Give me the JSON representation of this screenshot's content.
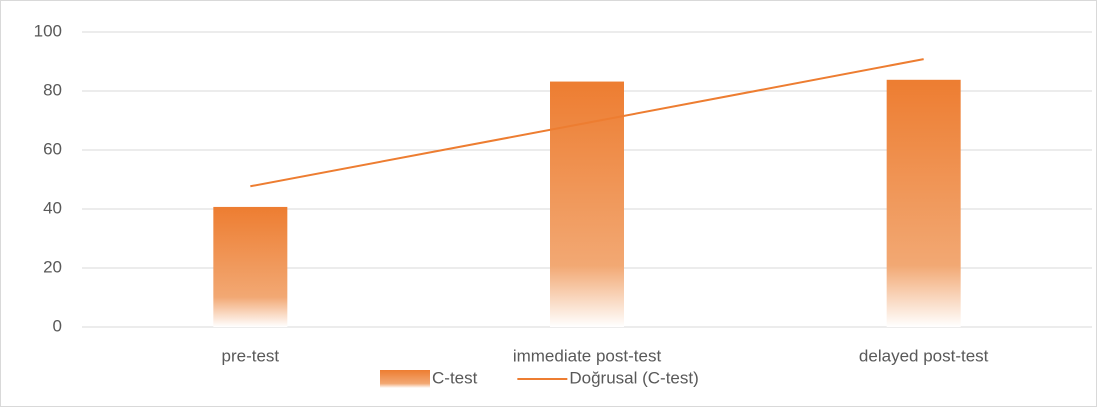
{
  "chart_data": {
    "type": "bar",
    "categories": [
      "pre-test",
      "immediate post-test",
      "delayed post-test"
    ],
    "series": [
      {
        "name": "C-test",
        "type": "bar",
        "color": "#ed7d31",
        "values": [
          40.7,
          83.2,
          83.8
        ]
      },
      {
        "name": "Doğrusal (C-test)",
        "type": "line",
        "color": "#ed7d31",
        "values": [
          47.7,
          69.2,
          90.8
        ]
      }
    ],
    "ylim": [
      0,
      100
    ],
    "yticks": [
      0,
      20,
      40,
      60,
      80,
      100
    ],
    "grid": true,
    "legend": "bottom"
  }
}
